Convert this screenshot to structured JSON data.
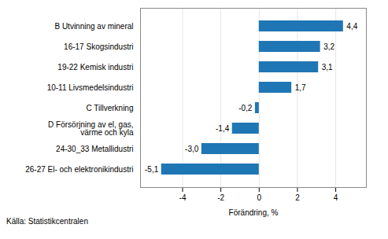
{
  "chart_data": {
    "type": "bar",
    "orientation": "horizontal",
    "categories": [
      "26-27 El- och elektronikindustri",
      "24-30_33 Metallidustri",
      "D Försörjning av el, gas,\nvärme och kyla",
      "C Tillverkning",
      "10-11 Livsmedelsindustri",
      "19-22 Kemisk industri",
      "16-17 Skogsindustri",
      "B Utvinning av mineral"
    ],
    "values": [
      -5.1,
      -3.0,
      -1.4,
      -0.2,
      1.7,
      3.1,
      3.2,
      4.4
    ],
    "value_labels": [
      "-5,1",
      "-3,0",
      "-1,4",
      "-0,2",
      "1,7",
      "3,1",
      "3,2",
      "4,4"
    ],
    "color": "#1f76b4",
    "xlabel": "Förändring, %",
    "source": "Källa: Statistikcentralen",
    "xlim": [
      -6.2,
      5.6
    ],
    "xticks": [
      -4,
      -2,
      0,
      2,
      4
    ],
    "grid": true,
    "data_labels": true
  }
}
